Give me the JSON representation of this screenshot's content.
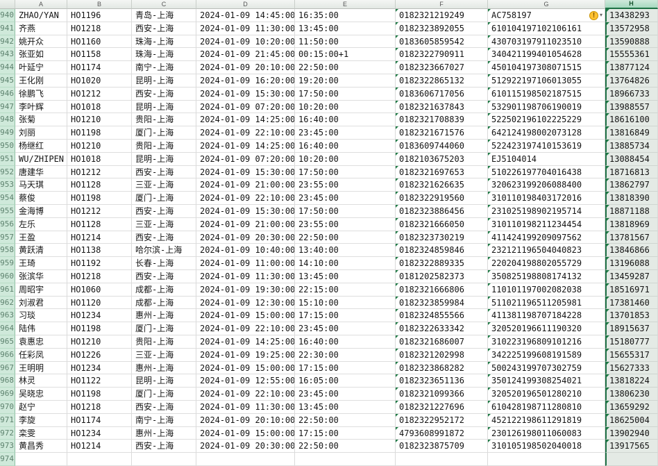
{
  "sheet": {
    "column_headers": [
      "A",
      "B",
      "C",
      "D",
      "E",
      "F",
      "G",
      "H"
    ],
    "selected_column": "H",
    "corner_label": "",
    "warning_badge": {
      "symbol": "!",
      "dropdown": "▾"
    },
    "rows": [
      [
        940,
        "ZHAO/YAN",
        "HO1196",
        "青岛-上海",
        "2024-01-09  14:45:00",
        "16:35:00",
        "0182321219249",
        "AC758197",
        "13438293",
        true
      ],
      [
        941,
        "齐燕",
        "HO1218",
        "西安-上海",
        "2024-01-09  11:30:00",
        "13:45:00",
        "0182323892055",
        "610104197102106161",
        "13572958",
        false
      ],
      [
        942,
        "姚开众",
        "HO1160",
        "珠海-上海",
        "2024-01-09  10:20:00",
        "11:50:00",
        "0183605859542",
        "430703197911023510",
        "13590888",
        false
      ],
      [
        943,
        "张亚如",
        "HO1158",
        "珠海-上海",
        "2024-01-09  21:45:00",
        "00:15:00+1",
        "0182322790911",
        "340421199401054628",
        "15555361",
        false
      ],
      [
        944,
        "叶延宁",
        "HO1174",
        "南宁-上海",
        "2024-01-09  20:10:00",
        "22:50:00",
        "0182323667027",
        "450104197308071515",
        "13877124",
        false
      ],
      [
        945,
        "王化刚",
        "HO1020",
        "昆明-上海",
        "2024-01-09  16:20:00",
        "19:20:00",
        "0182322865132",
        "512922197106013055",
        "13764826",
        false
      ],
      [
        946,
        "徐鹏飞",
        "HO1212",
        "西安-上海",
        "2024-01-09  15:30:00",
        "17:50:00",
        "0183606717056",
        "610115198502187515",
        "18966733",
        false
      ],
      [
        947,
        "李叶辉",
        "HO1018",
        "昆明-上海",
        "2024-01-09  07:20:00",
        "10:20:00",
        "0182321637843",
        "532901198706190019",
        "13988557",
        false
      ],
      [
        948,
        "张菊",
        "HO1210",
        "贵阳-上海",
        "2024-01-09  14:25:00",
        "16:40:00",
        "0182321708839",
        "522502196102225229",
        "18616100",
        false
      ],
      [
        949,
        "刘丽",
        "HO1198",
        "厦门-上海",
        "2024-01-09  22:10:00",
        "23:45:00",
        "0182321671576",
        "642124198002073128",
        "13816849",
        false
      ],
      [
        950,
        "杨继红",
        "HO1210",
        "贵阳-上海",
        "2024-01-09  14:25:00",
        "16:40:00",
        "0183609744060",
        "522423197410153619",
        "13885734",
        false
      ],
      [
        951,
        "WU/ZHIPEN",
        "HO1018",
        "昆明-上海",
        "2024-01-09  07:20:00",
        "10:20:00",
        "0182103675203",
        "EJ5104014",
        "13088454",
        false
      ],
      [
        952,
        "唐建华",
        "HO1212",
        "西安-上海",
        "2024-01-09  15:30:00",
        "17:50:00",
        "0182321697653",
        "510226197704016438",
        "18716813",
        false
      ],
      [
        953,
        "马天琪",
        "HO1128",
        "三亚-上海",
        "2024-01-09  21:00:00",
        "23:55:00",
        "0182321626635",
        "320623199206088400",
        "13862797",
        false
      ],
      [
        954,
        "蔡俊",
        "HO1198",
        "厦门-上海",
        "2024-01-09  22:10:00",
        "23:45:00",
        "0182322919560",
        "310110198403172016",
        "13818390",
        false
      ],
      [
        955,
        "金海博",
        "HO1212",
        "西安-上海",
        "2024-01-09  15:30:00",
        "17:50:00",
        "0182323886456",
        "231025198902195714",
        "18871188",
        false
      ],
      [
        956,
        "左乐",
        "HO1128",
        "三亚-上海",
        "2024-01-09  21:00:00",
        "23:55:00",
        "0182321666050",
        "310110198211234454",
        "13818969",
        false
      ],
      [
        957,
        "王盈",
        "HO1214",
        "西安-上海",
        "2024-01-09  20:30:00",
        "22:50:00",
        "0182323730219",
        "411424199209097562",
        "13781567",
        false
      ],
      [
        958,
        "黄跃清",
        "HO1138",
        "哈尔滨-上海",
        "2024-01-09  10:40:00",
        "13:40:00",
        "0182324859846",
        "232121196504040823",
        "13846866",
        false
      ],
      [
        959,
        "王琦",
        "HO1192",
        "长春-上海",
        "2024-01-09  11:00:00",
        "14:10:00",
        "0182322889335",
        "220204198802055729",
        "13196088",
        false
      ],
      [
        960,
        "张滨华",
        "HO1218",
        "西安-上海",
        "2024-01-09  11:30:00",
        "13:45:00",
        "0181202582373",
        "350825198808174132",
        "13459287",
        false
      ],
      [
        961,
        "周昭宇",
        "HO1060",
        "成都-上海",
        "2024-01-09  19:30:00",
        "22:15:00",
        "0182321666806",
        "110101197002082038",
        "18516971",
        false
      ],
      [
        962,
        "刘淑君",
        "HO1120",
        "成都-上海",
        "2024-01-09  12:30:00",
        "15:10:00",
        "0182323859984",
        "511021196511205981",
        "17381460",
        false
      ],
      [
        963,
        "习琰",
        "HO1234",
        "惠州-上海",
        "2024-01-09  15:00:00",
        "17:15:00",
        "0182324855566",
        "411381198707184228",
        "13701853",
        false
      ],
      [
        964,
        "陆伟",
        "HO1198",
        "厦门-上海",
        "2024-01-09  22:10:00",
        "23:45:00",
        "0182322633342",
        "320520196611190320",
        "18915637",
        false
      ],
      [
        965,
        "袁惠忠",
        "HO1210",
        "贵阳-上海",
        "2024-01-09  14:25:00",
        "16:40:00",
        "0182321686007",
        "310223196809101216",
        "15180777",
        false
      ],
      [
        966,
        "任彩凤",
        "HO1226",
        "三亚-上海",
        "2024-01-09  19:25:00",
        "22:30:00",
        "0182321202998",
        "342225199608191589",
        "15655317",
        false
      ],
      [
        967,
        "王明明",
        "HO1234",
        "惠州-上海",
        "2024-01-09  15:00:00",
        "17:15:00",
        "0182323868282",
        "500243199707302759",
        "15627333",
        false
      ],
      [
        968,
        "林灵",
        "HO1122",
        "昆明-上海",
        "2024-01-09  12:55:00",
        "16:05:00",
        "0182323651136",
        "350124199308254021",
        "13818224",
        false
      ],
      [
        969,
        "吴晓忠",
        "HO1198",
        "厦门-上海",
        "2024-01-09  22:10:00",
        "23:45:00",
        "0182321099366",
        "320520196501280210",
        "13806230",
        false
      ],
      [
        970,
        "赵宁",
        "HO1218",
        "西安-上海",
        "2024-01-09  11:30:00",
        "13:45:00",
        "0182321227696",
        "610428198711280810",
        "13659292",
        false
      ],
      [
        971,
        "李旋",
        "HO1174",
        "南宁-上海",
        "2024-01-09  20:10:00",
        "22:50:00",
        "0182322952172",
        "452122198611291819",
        "18625004",
        false
      ],
      [
        972,
        "栾雯",
        "HO1234",
        "惠州-上海",
        "2024-01-09  15:00:00",
        "17:15:00",
        "4793608991872",
        "230126198011060083",
        "13902940",
        false
      ],
      [
        973,
        "黄昌秀",
        "HO1214",
        "西安-上海",
        "2024-01-09  20:30:00",
        "22:50:00",
        "0182323875709",
        "310105198502040018",
        "13917565",
        false
      ],
      [
        974,
        "",
        "",
        "",
        "",
        "",
        "",
        "",
        "",
        false
      ]
    ]
  }
}
